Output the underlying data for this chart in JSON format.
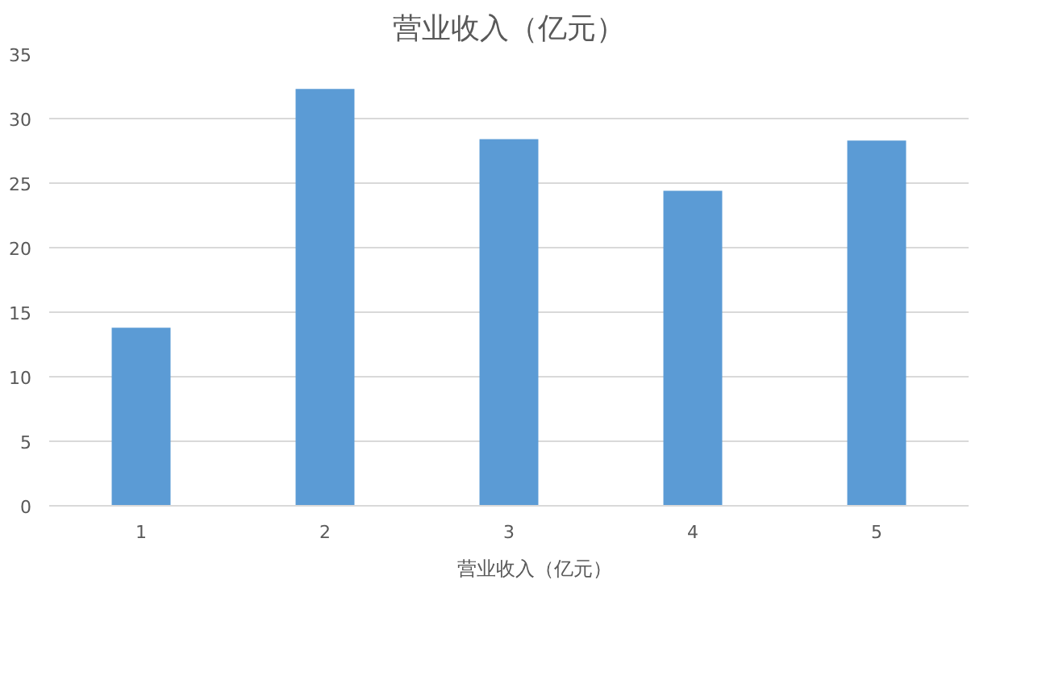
{
  "chart_data": {
    "type": "bar",
    "title": "营业收入（亿元）",
    "categories": [
      "1",
      "2",
      "3",
      "4",
      "5"
    ],
    "series": [
      {
        "name": "营业收入（亿元）",
        "color": "#5b9bd5",
        "values": [
          13.8,
          32.3,
          28.4,
          24.4,
          28.3
        ]
      }
    ],
    "ylim": [
      0,
      35
    ],
    "yticks": [
      0,
      5,
      10,
      15,
      20,
      25,
      30,
      35
    ],
    "grid": "y",
    "legend": "bottom"
  }
}
